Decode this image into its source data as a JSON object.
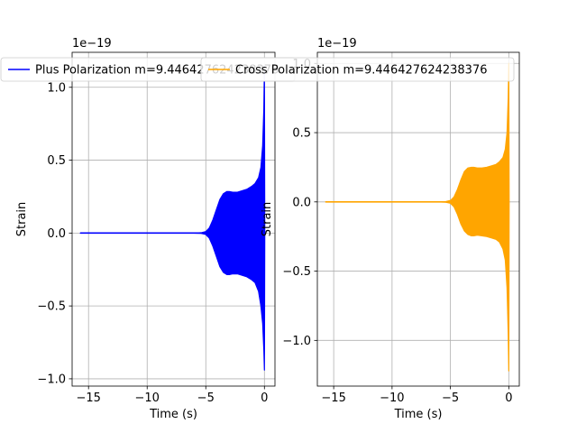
{
  "chart_data": [
    {
      "type": "line",
      "title": "Plus Polarization m=9.446427624238376",
      "xlabel": "Time (s)",
      "ylabel": "Strain",
      "offset_text": "1e−19",
      "legend": {
        "placement": "upper-left",
        "entries": [
          "Plus Polarization m=9.446427624238376"
        ]
      },
      "grid": true,
      "xlim": [
        -16.4,
        0.9
      ],
      "ylim": [
        -1.05,
        1.24
      ],
      "xticks": [
        -15,
        -10,
        -5,
        0
      ],
      "xtick_labels": [
        "−15",
        "−10",
        "−5",
        "0"
      ],
      "yticks": [
        -1.0,
        -0.5,
        0.0,
        0.5,
        1.0
      ],
      "ytick_labels": [
        "−1.0",
        "−0.5",
        "0.0",
        "0.5",
        "1.0"
      ],
      "series": [
        {
          "color": "#0000ff",
          "x": [
            -15.7,
            -13,
            -10,
            -8,
            -6,
            -5.4,
            -5.0,
            -4.7,
            -4.4,
            -4.1,
            -3.8,
            -3.5,
            -3.2,
            -3.0,
            -2.7,
            -2.3,
            -1.9,
            -1.5,
            -1.1,
            -0.8,
            -0.5,
            -0.3,
            -0.15,
            -0.05,
            0.0,
            0.03
          ],
          "upper": [
            0.0,
            0.0,
            0.0,
            0.0,
            0.0,
            0.002,
            0.01,
            0.035,
            0.09,
            0.16,
            0.23,
            0.27,
            0.285,
            0.285,
            0.28,
            0.28,
            0.29,
            0.3,
            0.32,
            0.34,
            0.38,
            0.45,
            0.6,
            0.85,
            1.15,
            0.0
          ],
          "lower": [
            0.0,
            0.0,
            0.0,
            0.0,
            0.0,
            -0.002,
            -0.01,
            -0.035,
            -0.09,
            -0.16,
            -0.23,
            -0.27,
            -0.285,
            -0.285,
            -0.28,
            -0.28,
            -0.29,
            -0.3,
            -0.32,
            -0.34,
            -0.4,
            -0.5,
            -0.62,
            -0.8,
            -0.94,
            0.0
          ]
        }
      ]
    },
    {
      "type": "line",
      "title": "Cross Polarization m=9.446427624238376",
      "xlabel": "Time (s)",
      "ylabel": "Strain",
      "offset_text": "1e−19",
      "legend": {
        "placement": "upper-left",
        "entries": [
          "Cross Polarization m=9.446427624238376"
        ]
      },
      "grid": true,
      "xlim": [
        -16.4,
        0.9
      ],
      "ylim": [
        -1.33,
        1.08
      ],
      "xticks": [
        -15,
        -10,
        -5,
        0
      ],
      "xtick_labels": [
        "−15",
        "−10",
        "−5",
        "0"
      ],
      "yticks": [
        -1.0,
        -0.5,
        0.0,
        0.5,
        1.0
      ],
      "ytick_labels": [
        "−1.0",
        "−0.5",
        "0.0",
        "0.5",
        "1.0"
      ],
      "series": [
        {
          "color": "#ffa500",
          "x": [
            -15.7,
            -13,
            -10,
            -8,
            -6,
            -5.4,
            -5.0,
            -4.7,
            -4.4,
            -4.1,
            -3.8,
            -3.5,
            -3.2,
            -3.0,
            -2.7,
            -2.3,
            -1.9,
            -1.5,
            -1.1,
            -0.8,
            -0.5,
            -0.3,
            -0.15,
            -0.05,
            0.0,
            0.03
          ],
          "upper": [
            0.0,
            0.0,
            0.0,
            0.0,
            0.0,
            0.002,
            0.01,
            0.035,
            0.09,
            0.16,
            0.22,
            0.245,
            0.25,
            0.25,
            0.245,
            0.245,
            0.25,
            0.26,
            0.27,
            0.29,
            0.32,
            0.38,
            0.5,
            0.75,
            1.0,
            0.0
          ],
          "lower": [
            0.0,
            0.0,
            0.0,
            0.0,
            0.0,
            -0.002,
            -0.01,
            -0.035,
            -0.09,
            -0.16,
            -0.21,
            -0.235,
            -0.245,
            -0.245,
            -0.24,
            -0.245,
            -0.25,
            -0.26,
            -0.27,
            -0.29,
            -0.34,
            -0.42,
            -0.62,
            -0.95,
            -1.22,
            0.0
          ]
        }
      ]
    }
  ]
}
